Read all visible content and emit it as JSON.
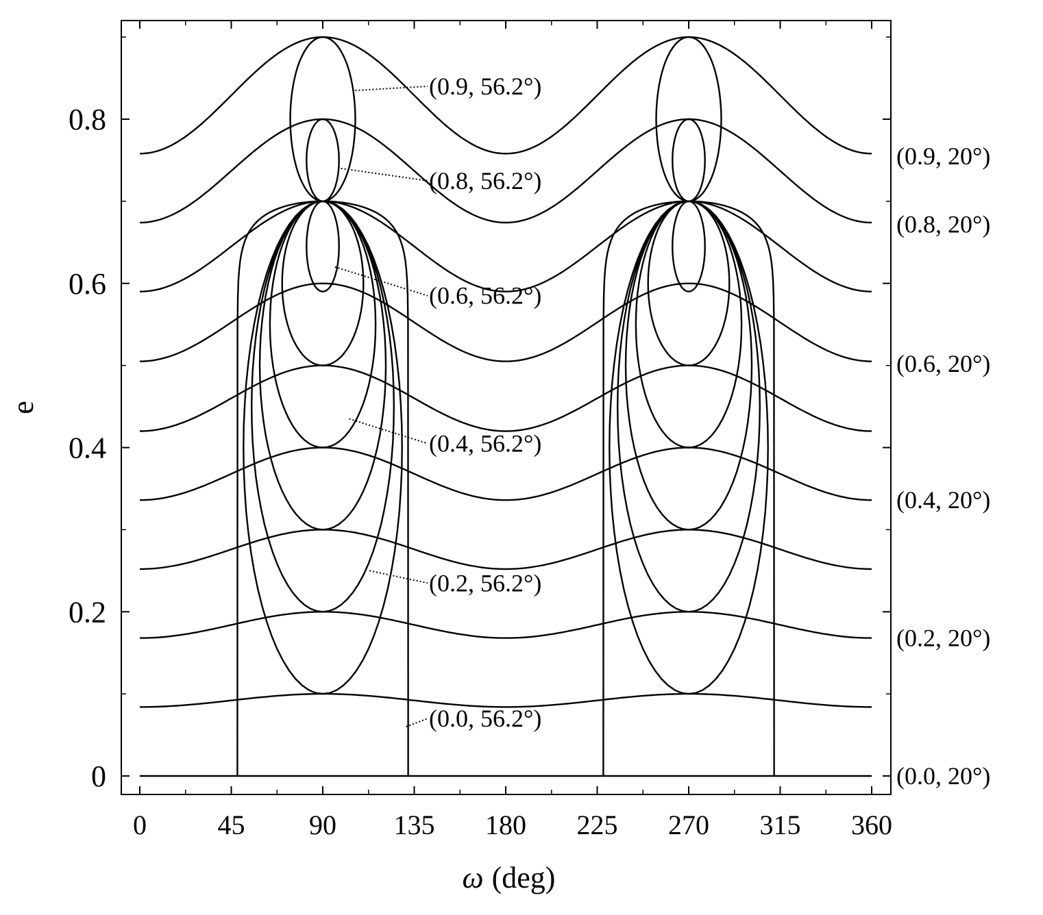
{
  "chart_data": {
    "type": "line",
    "xlabel_symbol": "ω",
    "xlabel_unit": "(deg)",
    "ylabel": "e",
    "xlim": [
      -5,
      367
    ],
    "ylim": [
      -0.055,
      0.92
    ],
    "x_ticks": [
      0,
      45,
      90,
      135,
      180,
      225,
      270,
      315,
      360
    ],
    "x_tick_labels": [
      "0",
      "45",
      "90",
      "135",
      "180",
      "225",
      "270",
      "315",
      "360"
    ],
    "y_ticks": [
      0,
      0.2,
      0.4,
      0.6,
      0.8
    ],
    "y_tick_labels": [
      "0",
      "0.2",
      "0.4",
      "0.6",
      "0.8"
    ],
    "grid": false,
    "line_color": "#000000",
    "series_low_inclination": [
      {
        "name": "(0.0, 20°)",
        "e0": 0.0,
        "e_min": 0.0,
        "e_max": 0.0
      },
      {
        "name": "",
        "e0": 0.1,
        "e_min": 0.084,
        "e_max": 0.1
      },
      {
        "name": "(0.2, 20°)",
        "e0": 0.2,
        "e_min": 0.168,
        "e_max": 0.2
      },
      {
        "name": "",
        "e0": 0.3,
        "e_min": 0.252,
        "e_max": 0.3
      },
      {
        "name": "(0.4, 20°)",
        "e0": 0.4,
        "e_min": 0.336,
        "e_max": 0.4
      },
      {
        "name": "",
        "e0": 0.5,
        "e_min": 0.42,
        "e_max": 0.5
      },
      {
        "name": "(0.6, 20°)",
        "e0": 0.6,
        "e_min": 0.505,
        "e_max": 0.6
      },
      {
        "name": "",
        "e0": 0.7,
        "e_min": 0.59,
        "e_max": 0.7
      },
      {
        "name": "(0.8, 20°)",
        "e0": 0.8,
        "e_min": 0.674,
        "e_max": 0.8
      },
      {
        "name": "(0.9, 20°)",
        "e0": 0.9,
        "e_min": 0.758,
        "e_max": 0.9
      }
    ],
    "series_high_inclination": [
      {
        "name": "(0.0, 56.2°)",
        "e0": 0.0,
        "omega_edges": [
          48,
          132
        ],
        "e_peak": 0.7,
        "kind": "open"
      },
      {
        "name": "",
        "e0": 0.1,
        "e_min": 0.1,
        "e_max": 0.7,
        "half_width_deg": 39,
        "kind": "loop"
      },
      {
        "name": "(0.2, 56.2°)",
        "e0": 0.2,
        "e_min": 0.2,
        "e_max": 0.7,
        "half_width_deg": 35,
        "kind": "loop"
      },
      {
        "name": "",
        "e0": 0.3,
        "e_min": 0.3,
        "e_max": 0.7,
        "half_width_deg": 31,
        "kind": "loop"
      },
      {
        "name": "(0.4, 56.2°)",
        "e0": 0.4,
        "e_min": 0.4,
        "e_max": 0.7,
        "half_width_deg": 26,
        "kind": "loop"
      },
      {
        "name": "",
        "e0": 0.5,
        "e_min": 0.5,
        "e_max": 0.7,
        "half_width_deg": 20,
        "kind": "loop"
      },
      {
        "name": "(0.6, 56.2°)",
        "e0": 0.6,
        "e_min": 0.59,
        "e_max": 0.7,
        "half_width_deg": 8,
        "kind": "loop"
      },
      {
        "name": "(0.8, 56.2°)",
        "e0": 0.8,
        "e_min": 0.7,
        "e_max": 0.8,
        "half_width_deg": 8,
        "kind": "loop"
      },
      {
        "name": "(0.9, 56.2°)",
        "e0": 0.9,
        "e_min": 0.7,
        "e_max": 0.9,
        "half_width_deg": 16,
        "kind": "loop"
      }
    ],
    "annotations": [
      {
        "text": "(0.9, 56.2°)",
        "x": 106,
        "y": 0.835,
        "label_y": 0.83
      },
      {
        "text": "(0.8, 56.2°)",
        "x": 99,
        "y": 0.74,
        "label_y": 0.715
      },
      {
        "text": "(0.6, 56.2°)",
        "x": 96,
        "y": 0.62,
        "label_y": 0.575
      },
      {
        "text": "(0.4, 56.2°)",
        "x": 103,
        "y": 0.435,
        "label_y": 0.395
      },
      {
        "text": "(0.2, 56.2°)",
        "x": 113,
        "y": 0.25,
        "label_y": 0.225
      },
      {
        "text": "(0.0, 56.2°)",
        "x": 131,
        "y": 0.06,
        "label_y": 0.06
      }
    ],
    "right_labels": [
      {
        "text": "(0.9, 20°)",
        "y": 0.755
      },
      {
        "text": "(0.8, 20°)",
        "y": 0.672
      },
      {
        "text": "(0.6, 20°)",
        "y": 0.502
      },
      {
        "text": "(0.4, 20°)",
        "y": 0.336
      },
      {
        "text": "(0.2, 20°)",
        "y": 0.168
      },
      {
        "text": "(0.0, 20°)",
        "y": 0.0
      }
    ]
  }
}
